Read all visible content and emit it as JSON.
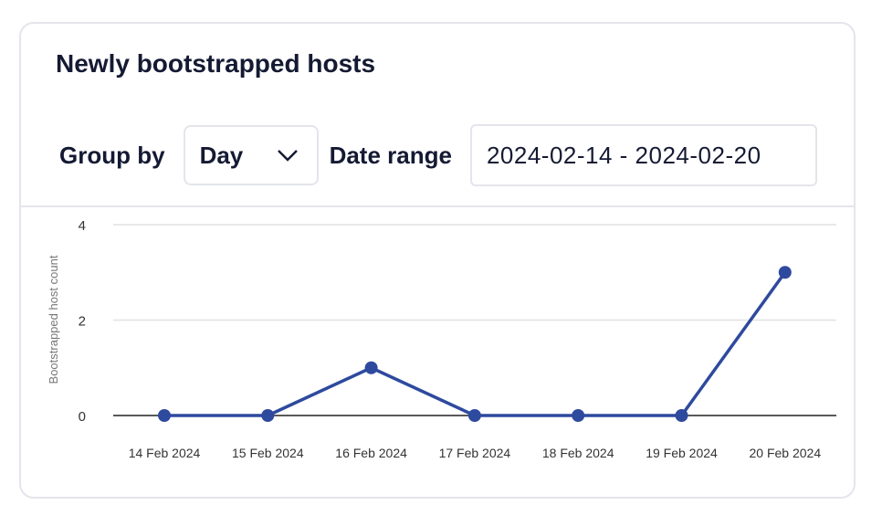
{
  "card": {
    "title": "Newly bootstrapped hosts",
    "group_by_label": "Group by",
    "group_by_value": "Day",
    "date_range_label": "Date range",
    "date_range_value": "2024-02-14 - 2024-02-20"
  },
  "chart_data": {
    "type": "line",
    "categories": [
      "14 Feb 2024",
      "15 Feb 2024",
      "16 Feb 2024",
      "17 Feb 2024",
      "18 Feb 2024",
      "19 Feb 2024",
      "20 Feb 2024"
    ],
    "values": [
      0,
      0,
      1,
      0,
      0,
      0,
      3
    ],
    "ylabel": "Bootstrapped host count",
    "xlabel": "",
    "ylim": [
      0,
      4
    ],
    "yticks": [
      0,
      2,
      4
    ],
    "grid": true,
    "color": "#2e4a9e"
  }
}
